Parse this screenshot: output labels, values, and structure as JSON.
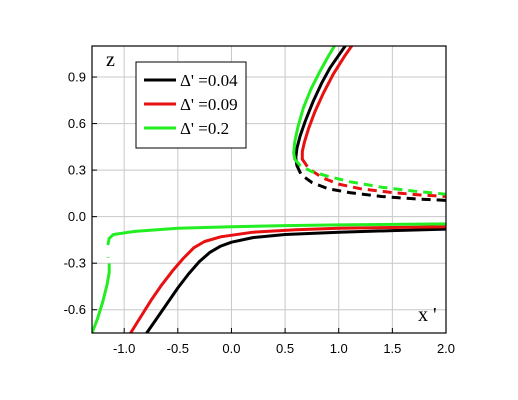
{
  "chart_data": {
    "type": "line",
    "title": "",
    "xlabel": "x '",
    "ylabel": "z",
    "xlim": [
      -1.3,
      2.0
    ],
    "ylim": [
      -0.75,
      1.1
    ],
    "xticks": [
      -1.0,
      -0.5,
      0.0,
      0.5,
      1.0,
      1.5,
      2.0
    ],
    "xtick_labels": [
      "-1.0",
      "-0.5",
      "0.0",
      "0.5",
      "1.0",
      "1.5",
      "2.0"
    ],
    "yticks": [
      -0.6,
      -0.3,
      0.0,
      0.3,
      0.6,
      0.9
    ],
    "ytick_labels": [
      "-0.6",
      "-0.3",
      "0.0",
      "0.3",
      "0.6",
      "0.9"
    ],
    "grid": true,
    "legend_position": "top-left",
    "series": [
      {
        "name": "Δ' =0.04",
        "color": "#000000",
        "segments": [
          {
            "style": "solid",
            "points": [
              [
                -0.79,
                -0.75
              ],
              [
                -0.7,
                -0.66
              ],
              [
                -0.6,
                -0.56
              ],
              [
                -0.5,
                -0.46
              ],
              [
                -0.4,
                -0.37
              ],
              [
                -0.3,
                -0.29
              ],
              [
                -0.2,
                -0.23
              ],
              [
                -0.1,
                -0.19
              ],
              [
                0.0,
                -0.165
              ],
              [
                0.2,
                -0.135
              ],
              [
                0.5,
                -0.115
              ],
              [
                1.0,
                -0.1
              ],
              [
                1.5,
                -0.09
              ],
              [
                2.0,
                -0.08
              ]
            ]
          },
          {
            "style": "solid",
            "points": [
              [
                1.06,
                1.1
              ],
              [
                1.0,
                1.04
              ],
              [
                0.92,
                0.96
              ],
              [
                0.84,
                0.86
              ],
              [
                0.76,
                0.74
              ],
              [
                0.69,
                0.62
              ],
              [
                0.64,
                0.52
              ],
              [
                0.61,
                0.44
              ],
              [
                0.6,
                0.38
              ],
              [
                0.61,
                0.33
              ]
            ]
          },
          {
            "style": "dashed",
            "points": [
              [
                0.61,
                0.33
              ],
              [
                0.65,
                0.27
              ],
              [
                0.75,
                0.22
              ],
              [
                0.9,
                0.18
              ],
              [
                1.1,
                0.155
              ],
              [
                1.4,
                0.13
              ],
              [
                1.7,
                0.115
              ],
              [
                2.0,
                0.105
              ]
            ]
          }
        ]
      },
      {
        "name": "Δ' =0.09",
        "color": "#e81010",
        "segments": [
          {
            "style": "solid",
            "points": [
              [
                -0.94,
                -0.75
              ],
              [
                -0.85,
                -0.65
              ],
              [
                -0.75,
                -0.54
              ],
              [
                -0.65,
                -0.44
              ],
              [
                -0.55,
                -0.35
              ],
              [
                -0.45,
                -0.27
              ],
              [
                -0.35,
                -0.2
              ],
              [
                -0.25,
                -0.16
              ],
              [
                -0.1,
                -0.13
              ],
              [
                0.2,
                -0.1
              ],
              [
                0.6,
                -0.085
              ],
              [
                1.0,
                -0.075
              ],
              [
                1.5,
                -0.07
              ],
              [
                2.0,
                -0.065
              ]
            ]
          },
          {
            "style": "solid",
            "points": [
              [
                1.12,
                1.1
              ],
              [
                1.05,
                1.03
              ],
              [
                0.95,
                0.92
              ],
              [
                0.86,
                0.8
              ],
              [
                0.78,
                0.68
              ],
              [
                0.72,
                0.57
              ],
              [
                0.68,
                0.48
              ],
              [
                0.66,
                0.42
              ],
              [
                0.66,
                0.37
              ]
            ]
          },
          {
            "style": "dashed",
            "points": [
              [
                0.66,
                0.37
              ],
              [
                0.72,
                0.31
              ],
              [
                0.85,
                0.25
              ],
              [
                1.0,
                0.21
              ],
              [
                1.2,
                0.18
              ],
              [
                1.5,
                0.155
              ],
              [
                1.75,
                0.14
              ],
              [
                2.0,
                0.13
              ]
            ]
          }
        ]
      },
      {
        "name": "Δ' =0.2",
        "color": "#22ee22",
        "segments": [
          {
            "style": "solid",
            "points": [
              [
                -1.3,
                -0.75
              ],
              [
                -1.25,
                -0.66
              ],
              [
                -1.2,
                -0.55
              ],
              [
                -1.16,
                -0.44
              ],
              [
                -1.14,
                -0.36
              ]
            ]
          },
          {
            "style": "dashed",
            "points": [
              [
                -1.14,
                -0.36
              ],
              [
                -1.14,
                -0.3
              ],
              [
                -1.15,
                -0.26
              ]
            ]
          },
          {
            "style": "solid",
            "points": [
              [
                -1.15,
                -0.175
              ],
              [
                -1.14,
                -0.14
              ],
              [
                -1.1,
                -0.115
              ],
              [
                -0.9,
                -0.095
              ],
              [
                -0.5,
                -0.075
              ],
              [
                0.0,
                -0.065
              ],
              [
                0.5,
                -0.058
              ],
              [
                1.0,
                -0.053
              ],
              [
                1.5,
                -0.05
              ],
              [
                2.0,
                -0.047
              ]
            ]
          },
          {
            "style": "solid",
            "points": [
              [
                0.96,
                1.1
              ],
              [
                0.9,
                1.03
              ],
              [
                0.82,
                0.93
              ],
              [
                0.74,
                0.82
              ],
              [
                0.67,
                0.7
              ],
              [
                0.62,
                0.58
              ],
              [
                0.59,
                0.48
              ],
              [
                0.58,
                0.41
              ],
              [
                0.59,
                0.37
              ]
            ]
          },
          {
            "style": "dashed",
            "points": [
              [
                0.59,
                0.37
              ],
              [
                0.64,
                0.33
              ],
              [
                0.75,
                0.29
              ],
              [
                0.9,
                0.26
              ],
              [
                1.1,
                0.225
              ],
              [
                1.4,
                0.19
              ],
              [
                1.7,
                0.165
              ],
              [
                2.0,
                0.145
              ]
            ]
          }
        ]
      }
    ]
  }
}
